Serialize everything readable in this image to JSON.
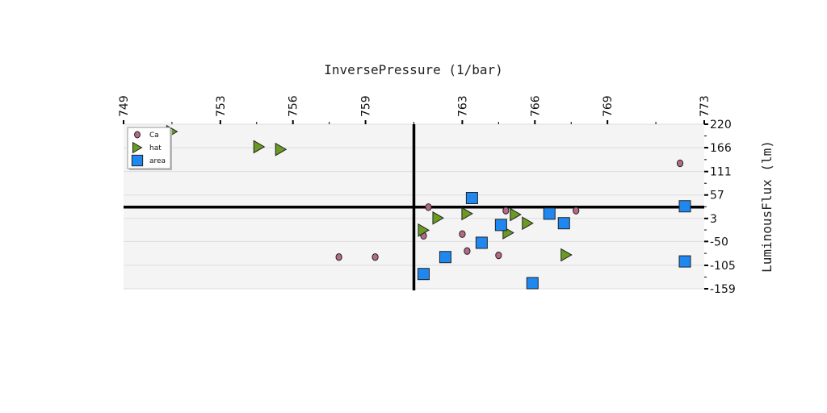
{
  "chart_data": {
    "type": "scatter",
    "title": "",
    "xlabel": "InversePressure (1/bar)",
    "ylabel": "LuminousFlux (lm)",
    "xlim": [
      749,
      773
    ],
    "ylim": [
      -159,
      220
    ],
    "x_ticks": [
      "749",
      "753",
      "756",
      "759",
      "763",
      "766",
      "769",
      "773"
    ],
    "y_ticks": [
      "220",
      "166",
      "111",
      "57",
      "3",
      "-50",
      "-105",
      "-159"
    ],
    "x_axis_position": "top",
    "y_axis_position": "right",
    "grid": true,
    "legend": "top-left",
    "reference_lines": {
      "x": 761,
      "y": 29
    },
    "colors": {
      "Ca": "#b5688a",
      "hat": "#6a9a22",
      "area": "#1e88f0",
      "plot_bg": "#f4f4f4",
      "grid": "#dcdcdc"
    },
    "series": [
      {
        "name": "Ca",
        "marker": "circle",
        "points": [
          [
            761.6,
            29
          ],
          [
            761.4,
            -37
          ],
          [
            763.0,
            -33
          ],
          [
            763.2,
            -72
          ],
          [
            764.5,
            -82
          ],
          [
            764.8,
            21
          ],
          [
            767.7,
            21
          ],
          [
            772.0,
            130
          ],
          [
            757.9,
            -86
          ],
          [
            759.4,
            -86
          ]
        ]
      },
      {
        "name": "hat",
        "marker": "triangle-right",
        "points": [
          [
            751.0,
            203
          ],
          [
            754.6,
            168
          ],
          [
            755.5,
            162
          ],
          [
            761.4,
            -24
          ],
          [
            762.0,
            4
          ],
          [
            763.2,
            14
          ],
          [
            764.9,
            -30
          ],
          [
            765.2,
            12
          ],
          [
            765.7,
            -8
          ],
          [
            767.3,
            -81
          ]
        ]
      },
      {
        "name": "area",
        "marker": "square",
        "points": [
          [
            763.4,
            50
          ],
          [
            764.6,
            -12
          ],
          [
            763.8,
            -53
          ],
          [
            762.3,
            -86
          ],
          [
            761.4,
            -125
          ],
          [
            765.9,
            -146
          ],
          [
            766.6,
            14
          ],
          [
            767.2,
            -8
          ],
          [
            772.2,
            31
          ],
          [
            772.2,
            -96
          ]
        ]
      }
    ]
  }
}
